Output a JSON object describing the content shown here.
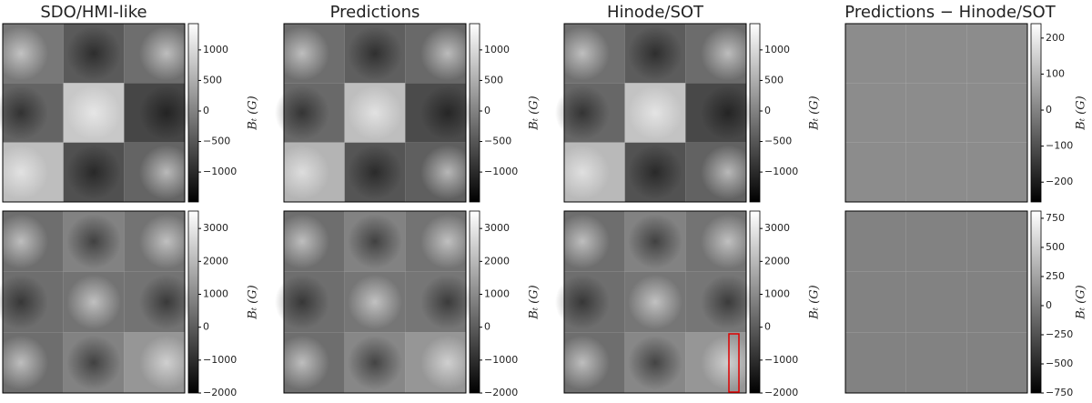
{
  "columns": [
    {
      "title": "SDO/HMI-like"
    },
    {
      "title": "Predictions"
    },
    {
      "title": "Hinode/SOT"
    },
    {
      "title": "Predictions − Hinode/SOT"
    }
  ],
  "rows": [
    {
      "colorbars": [
        {
          "range": [
            -1490,
            1430
          ],
          "ticks": [
            1000,
            500,
            0,
            {
              "value": -500,
              "label": "−500"
            },
            {
              "value": -1000,
              "label": "−1000"
            }
          ],
          "label": "Bₜ (G)"
        },
        {
          "range": [
            -1490,
            1430
          ],
          "ticks": [
            1000,
            500,
            0,
            {
              "value": -500,
              "label": "−500"
            },
            {
              "value": -1000,
              "label": "−1000"
            }
          ],
          "label": "Bₜ (G)"
        },
        {
          "range": [
            -1490,
            1430
          ],
          "ticks": [
            1000,
            500,
            0,
            {
              "value": -500,
              "label": "−500"
            },
            {
              "value": -1000,
              "label": "−1000"
            }
          ],
          "label": "Bₜ (G)"
        },
        {
          "range": [
            -255,
            240
          ],
          "ticks": [
            200,
            100,
            0,
            {
              "value": -100,
              "label": "−100"
            },
            {
              "value": -200,
              "label": "−200"
            }
          ],
          "label": "Bₜ (G)"
        }
      ]
    },
    {
      "colorbars": [
        {
          "range": [
            -2000,
            3530
          ],
          "ticks": [
            3000,
            2000,
            1000,
            0,
            {
              "value": -1000,
              "label": "−1000"
            },
            {
              "value": -2000,
              "label": "−2000"
            }
          ],
          "label": "Bₜ (G)"
        },
        {
          "range": [
            -2000,
            3530
          ],
          "ticks": [
            3000,
            2000,
            1000,
            0,
            {
              "value": -1000,
              "label": "−1000"
            },
            {
              "value": -2000,
              "label": "−2000"
            }
          ],
          "label": "Bₜ (G)"
        },
        {
          "range": [
            -2000,
            3530
          ],
          "ticks": [
            3000,
            2000,
            1000,
            0,
            {
              "value": -1000,
              "label": "−1000"
            },
            {
              "value": -2000,
              "label": "−2000"
            }
          ],
          "label": "Bₜ (G)"
        },
        {
          "range": [
            -750,
            812
          ],
          "ticks": [
            750,
            500,
            250,
            0,
            {
              "value": -250,
              "label": "−250"
            },
            {
              "value": -500,
              "label": "−500"
            },
            {
              "value": -750,
              "label": "−750"
            }
          ],
          "label": "Bₜ (G)"
        }
      ]
    }
  ]
}
